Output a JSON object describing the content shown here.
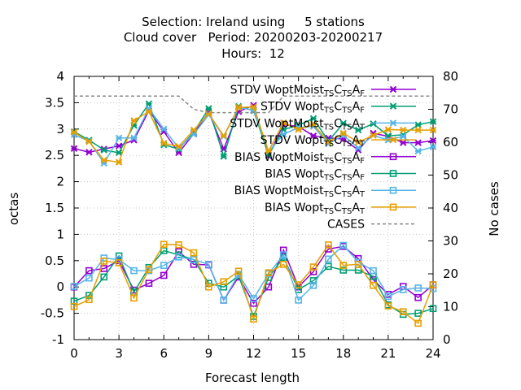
{
  "title_lines": [
    "Selection: Ireland using     5 stations",
    "Cloud cover   Period: 20200203-20200217",
    "Hours:  12"
  ],
  "chart_data": {
    "type": "line",
    "xlabel": "Forecast length",
    "ylabel": "octas",
    "y2label": "No cases",
    "xlim": [
      0,
      24
    ],
    "ylim": [
      -1,
      4
    ],
    "y2lim": [
      0,
      80
    ],
    "xticks": [
      "0",
      "3",
      "6",
      "9",
      "12",
      "15",
      "18",
      "21",
      "24"
    ],
    "yticks": [
      "-1",
      "-0.5",
      "0",
      "0.5",
      "1",
      "1.5",
      "2",
      "2.5",
      "3",
      "3.5",
      "4"
    ],
    "y2ticks": [
      "0",
      "10",
      "20",
      "30",
      "40",
      "50",
      "60",
      "70",
      "80"
    ],
    "grid": true,
    "legend_position": "top-right",
    "x": [
      0,
      1,
      2,
      3,
      4,
      5,
      6,
      7,
      8,
      9,
      10,
      11,
      12,
      13,
      14,
      15,
      16,
      17,
      18,
      19,
      20,
      21,
      22,
      23,
      24
    ],
    "series": [
      {
        "legend": [
          "STDV WoptMoist",
          "TS",
          "C",
          "TS",
          "A",
          "F"
        ],
        "color": "#9400d3",
        "marker": "x",
        "axis": "y",
        "values": [
          2.63,
          2.56,
          2.62,
          2.68,
          2.79,
          3.35,
          2.95,
          2.55,
          2.91,
          3.32,
          2.62,
          3.33,
          3.45,
          2.49,
          3.08,
          3.05,
          2.87,
          2.83,
          2.81,
          2.6,
          2.92,
          2.86,
          2.74,
          2.74,
          2.78
        ]
      },
      {
        "legend": [
          "STDV Wopt",
          "TS",
          "C",
          "TS",
          "A",
          "F"
        ],
        "color": "#009e73",
        "marker": "x",
        "axis": "y",
        "values": [
          2.95,
          2.79,
          2.6,
          2.55,
          3.07,
          3.48,
          2.7,
          2.62,
          2.94,
          3.39,
          2.48,
          3.43,
          3.35,
          2.51,
          2.99,
          3.07,
          3.2,
          2.77,
          3.11,
          2.98,
          3.1,
          2.87,
          2.89,
          3.08,
          3.14
        ]
      },
      {
        "legend": [
          "STDV WoptMoist",
          "TS",
          "C",
          "TS",
          "A",
          "T"
        ],
        "color": "#56b4e9",
        "marker": "x",
        "axis": "y",
        "values": [
          2.89,
          2.77,
          2.35,
          2.83,
          2.83,
          3.39,
          3.0,
          2.64,
          2.9,
          3.27,
          2.86,
          3.41,
          3.36,
          2.57,
          2.9,
          3.03,
          3.05,
          2.72,
          2.88,
          2.64,
          2.88,
          2.79,
          2.86,
          2.58,
          2.66
        ]
      },
      {
        "legend": [
          "STDV Wopt",
          "TS",
          "C",
          "TS",
          "A",
          "T"
        ],
        "color": "#e69f00",
        "marker": "x",
        "axis": "y",
        "values": [
          2.94,
          2.76,
          2.41,
          2.37,
          3.16,
          3.33,
          2.73,
          2.67,
          2.98,
          3.29,
          2.87,
          3.41,
          3.42,
          2.58,
          3.12,
          2.99,
          3.09,
          2.75,
          2.92,
          2.75,
          2.88,
          2.99,
          2.98,
          2.98,
          2.98
        ]
      },
      {
        "legend": [
          "BIAS WoptMoist",
          "TS",
          "C",
          "TS",
          "A",
          "F"
        ],
        "color": "#9400d3",
        "marker": "square",
        "axis": "y",
        "values": [
          0.0,
          0.31,
          0.35,
          0.5,
          -0.06,
          0.07,
          0.22,
          0.67,
          0.43,
          0.42,
          -0.25,
          0.19,
          -0.31,
          0.0,
          0.7,
          0.0,
          0.29,
          0.72,
          0.77,
          0.54,
          0.14,
          -0.14,
          0.01,
          -0.2,
          0.04
        ]
      },
      {
        "legend": [
          "BIAS Wopt",
          "TS",
          "C",
          "TS",
          "A",
          "F"
        ],
        "color": "#009e73",
        "marker": "square",
        "axis": "y",
        "values": [
          -0.27,
          -0.16,
          0.19,
          0.59,
          -0.1,
          0.37,
          0.69,
          0.61,
          0.52,
          0.07,
          0.0,
          0.21,
          -0.56,
          0.18,
          0.56,
          -0.05,
          0.12,
          0.39,
          0.32,
          0.32,
          0.2,
          -0.34,
          -0.52,
          -0.5,
          -0.41
        ]
      },
      {
        "legend": [
          "BIAS WoptMoist",
          "TS",
          "C",
          "TS",
          "A",
          "T"
        ],
        "color": "#56b4e9",
        "marker": "square",
        "axis": "y",
        "values": [
          0.01,
          0.17,
          0.55,
          0.52,
          0.31,
          0.31,
          0.41,
          0.57,
          0.52,
          0.43,
          -0.25,
          0.24,
          -0.22,
          0.25,
          0.61,
          -0.25,
          0.03,
          0.53,
          0.79,
          0.47,
          0.31,
          -0.18,
          -0.05,
          -0.02,
          -0.03
        ]
      },
      {
        "legend": [
          "BIAS Wopt",
          "TS",
          "C",
          "TS",
          "A",
          "T"
        ],
        "color": "#e69f00",
        "marker": "square",
        "axis": "y",
        "values": [
          -0.37,
          -0.24,
          0.49,
          0.46,
          -0.21,
          0.33,
          0.81,
          0.8,
          0.65,
          0.0,
          0.1,
          0.3,
          -0.61,
          0.27,
          0.43,
          0.04,
          0.38,
          0.8,
          0.41,
          0.43,
          0.03,
          -0.36,
          -0.47,
          -0.69,
          0.04
        ]
      },
      {
        "legend": [
          "CASES"
        ],
        "color": "#888888",
        "marker": "none",
        "dashed": true,
        "axis": "y2",
        "values": [
          74,
          74,
          74,
          74,
          74,
          74,
          74,
          74,
          70,
          69,
          69,
          69,
          69,
          69,
          74,
          74,
          74,
          74,
          74,
          74,
          74,
          74,
          74,
          74,
          74
        ]
      }
    ]
  }
}
